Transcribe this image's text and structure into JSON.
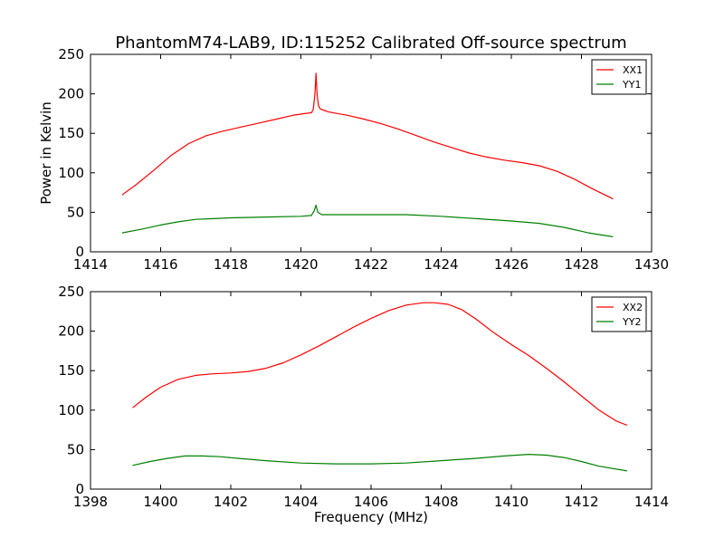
{
  "figure": {
    "title": "PhantomM74-LAB9, ID:115252 Calibrated Off-source spectrum"
  },
  "chart_data": [
    {
      "type": "line",
      "title": "PhantomM74-LAB9, ID:115252 Calibrated Off-source spectrum",
      "xlabel": "",
      "ylabel": "Power in Kelvin",
      "xlim": [
        1414,
        1430
      ],
      "ylim": [
        0,
        250
      ],
      "xticks": [
        1414,
        1416,
        1418,
        1420,
        1422,
        1424,
        1426,
        1428,
        1430
      ],
      "yticks": [
        0,
        50,
        100,
        150,
        200,
        250
      ],
      "legend_position": "top-right",
      "grid": false,
      "series": [
        {
          "name": "XX1",
          "color": "#ff0000",
          "x": [
            1414.9,
            1415.3,
            1415.8,
            1416.3,
            1416.8,
            1417.3,
            1417.8,
            1418.3,
            1418.8,
            1419.3,
            1419.8,
            1420.1,
            1420.3,
            1420.35,
            1420.4,
            1420.43,
            1420.46,
            1420.5,
            1420.55,
            1420.6,
            1420.8,
            1421.3,
            1421.8,
            1422.3,
            1422.8,
            1423.3,
            1423.8,
            1424.3,
            1424.8,
            1425.3,
            1425.8,
            1426.3,
            1426.8,
            1427.3,
            1427.8,
            1428.3,
            1428.9
          ],
          "y": [
            72,
            85,
            103,
            122,
            137,
            147,
            153,
            158,
            163,
            168,
            173,
            175,
            176,
            180,
            200,
            226,
            200,
            185,
            181,
            180,
            177,
            173,
            168,
            162,
            155,
            147,
            139,
            132,
            125,
            120,
            116,
            113,
            109,
            102,
            92,
            80,
            67
          ]
        },
        {
          "name": "YY1",
          "color": "#008000",
          "x": [
            1414.9,
            1415.5,
            1416.0,
            1416.5,
            1417.0,
            1417.5,
            1418.0,
            1419.0,
            1420.0,
            1420.3,
            1420.38,
            1420.43,
            1420.48,
            1420.6,
            1421.0,
            1422.0,
            1423.0,
            1424.0,
            1425.0,
            1426.0,
            1426.8,
            1427.5,
            1428.2,
            1428.9
          ],
          "y": [
            24,
            29,
            34,
            38,
            41,
            42,
            43,
            44,
            45,
            46,
            52,
            59,
            50,
            47,
            47,
            47,
            47,
            45,
            42,
            39,
            36,
            31,
            24,
            19
          ]
        }
      ]
    },
    {
      "type": "line",
      "title": "",
      "xlabel": "Frequency (MHz)",
      "ylabel": "",
      "xlim": [
        1398,
        1414
      ],
      "ylim": [
        0,
        250
      ],
      "xticks": [
        1398,
        1400,
        1402,
        1404,
        1406,
        1408,
        1410,
        1412,
        1414
      ],
      "yticks": [
        0,
        50,
        100,
        150,
        200,
        250
      ],
      "legend_position": "top-right",
      "grid": false,
      "series": [
        {
          "name": "XX2",
          "color": "#ff0000",
          "x": [
            1399.2,
            1399.6,
            1400.0,
            1400.5,
            1401.0,
            1401.5,
            1402.0,
            1402.5,
            1403.0,
            1403.5,
            1404.0,
            1404.5,
            1405.0,
            1405.5,
            1406.0,
            1406.5,
            1407.0,
            1407.5,
            1407.8,
            1408.2,
            1408.6,
            1409.0,
            1409.5,
            1410.0,
            1410.5,
            1411.0,
            1411.5,
            1412.0,
            1412.5,
            1413.0,
            1413.3
          ],
          "y": [
            103,
            117,
            129,
            139,
            144,
            146,
            147,
            149,
            153,
            160,
            170,
            181,
            193,
            205,
            216,
            226,
            233,
            236,
            236,
            234,
            227,
            215,
            198,
            183,
            169,
            153,
            136,
            118,
            100,
            86,
            81
          ]
        },
        {
          "name": "YY2",
          "color": "#008000",
          "x": [
            1399.2,
            1399.7,
            1400.2,
            1400.7,
            1401.2,
            1401.7,
            1402.2,
            1403.0,
            1404.0,
            1405.0,
            1406.0,
            1407.0,
            1408.0,
            1409.0,
            1409.8,
            1410.5,
            1411.0,
            1411.5,
            1412.0,
            1412.5,
            1413.3
          ],
          "y": [
            30,
            35,
            39,
            42,
            42,
            41,
            39,
            36,
            33,
            32,
            32,
            33,
            36,
            39,
            42,
            44,
            43,
            40,
            35,
            29,
            23
          ]
        }
      ]
    }
  ]
}
